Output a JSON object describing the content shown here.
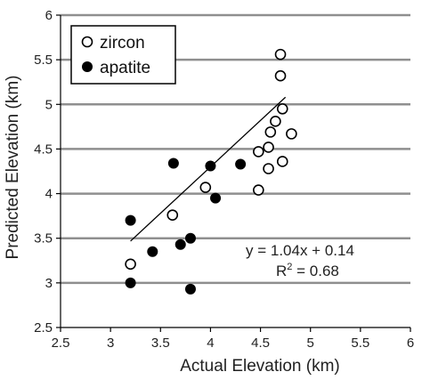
{
  "chart_data": {
    "type": "scatter",
    "xlabel": "Actual Elevation (km)",
    "ylabel": "Predicted Elevation (km)",
    "xlim": [
      2.5,
      6
    ],
    "ylim": [
      2.5,
      6
    ],
    "xticks": [
      "2.5",
      "3",
      "3.5",
      "4",
      "4.5",
      "5",
      "5.5",
      "6"
    ],
    "yticks": [
      "2.5",
      "3",
      "3.5",
      "4",
      "4.5",
      "5",
      "5.5",
      "6"
    ],
    "xtick_values": [
      2.5,
      3,
      3.5,
      4,
      4.5,
      5,
      5.5,
      6
    ],
    "ytick_values": [
      2.5,
      3,
      3.5,
      4,
      4.5,
      5,
      5.5,
      6
    ],
    "grid": "horizontal",
    "legend_position": "top-left",
    "series": [
      {
        "name": "zircon",
        "marker": "open-circle",
        "points": [
          [
            3.2,
            3.21
          ],
          [
            3.62,
            3.76
          ],
          [
            3.95,
            4.07
          ],
          [
            4.48,
            4.04
          ],
          [
            4.48,
            4.47
          ],
          [
            4.58,
            4.52
          ],
          [
            4.58,
            4.28
          ],
          [
            4.6,
            4.69
          ],
          [
            4.65,
            4.81
          ],
          [
            4.72,
            4.36
          ],
          [
            4.72,
            4.95
          ],
          [
            4.81,
            4.67
          ],
          [
            4.7,
            5.32
          ],
          [
            4.7,
            5.56
          ]
        ]
      },
      {
        "name": "apatite",
        "marker": "filled-circle",
        "points": [
          [
            3.2,
            3.7
          ],
          [
            3.2,
            3.0
          ],
          [
            3.42,
            3.35
          ],
          [
            3.63,
            4.34
          ],
          [
            3.7,
            3.43
          ],
          [
            3.8,
            3.5
          ],
          [
            3.8,
            2.93
          ],
          [
            4.0,
            4.31
          ],
          [
            4.05,
            3.95
          ],
          [
            4.3,
            4.33
          ]
        ]
      }
    ],
    "trendline": {
      "slope": 1.04,
      "intercept": 0.14,
      "x_range": [
        3.2,
        4.75
      ]
    },
    "annotation": {
      "equation": "y = 1.04x + 0.14",
      "r2_prefix": "R",
      "r2_sup": "2",
      "r2_suffix": " = 0.68"
    },
    "colors": {
      "grid": "#8f8f8f",
      "marker": "#000000",
      "trendline": "#000000"
    }
  }
}
